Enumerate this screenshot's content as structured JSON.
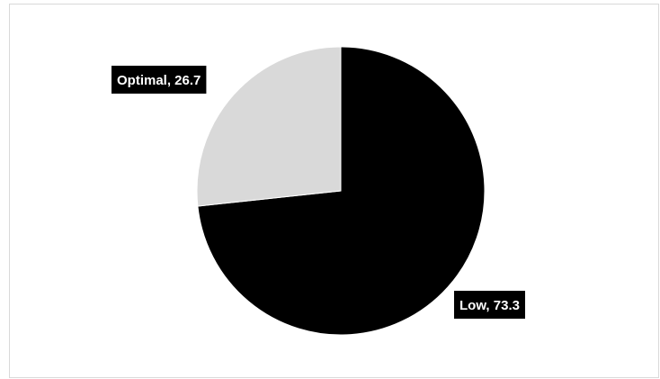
{
  "chart_data": {
    "type": "pie",
    "title": "",
    "slices": [
      {
        "name": "Low",
        "value": 73.3,
        "label": "Low, 73.3",
        "color": "#000000"
      },
      {
        "name": "Optimal",
        "value": 26.7,
        "label": "Optimal, 26.7",
        "color": "#d9d9d9"
      }
    ],
    "label_background": "#000000",
    "label_color": "#ffffff",
    "start_angle_deg": 0,
    "direction": "clockwise",
    "legend": "none"
  }
}
